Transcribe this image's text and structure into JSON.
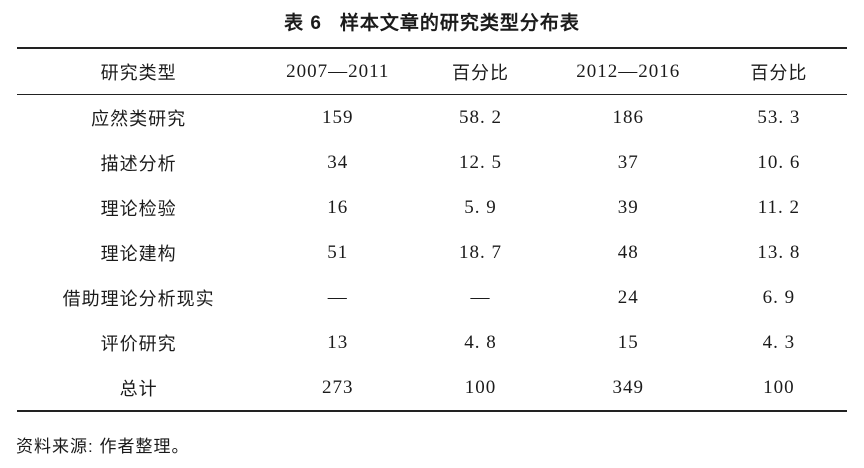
{
  "table": {
    "caption": {
      "label": "表 6",
      "text": "样本文章的研究类型分布表"
    },
    "columns": [
      {
        "label": "研究类型",
        "style": "cn"
      },
      {
        "label": "2007—2011",
        "style": "num"
      },
      {
        "label": "百分比",
        "style": "cn"
      },
      {
        "label": "2012—2016",
        "style": "num"
      },
      {
        "label": "百分比",
        "style": "cn"
      }
    ],
    "rows": [
      {
        "label": "应然类研究",
        "values": [
          "159",
          "58. 2",
          "186",
          "53. 3"
        ]
      },
      {
        "label": "描述分析",
        "values": [
          "34",
          "12. 5",
          "37",
          "10. 6"
        ]
      },
      {
        "label": "理论检验",
        "values": [
          "16",
          "5. 9",
          "39",
          "11. 2"
        ]
      },
      {
        "label": "理论建构",
        "values": [
          "51",
          "18. 7",
          "48",
          "13. 8"
        ]
      },
      {
        "label": "借助理论分析现实",
        "values": [
          "—",
          "—",
          "24",
          "6. 9"
        ]
      },
      {
        "label": "评价研究",
        "values": [
          "13",
          "4. 8",
          "15",
          "4. 3"
        ]
      },
      {
        "label": "总计",
        "values": [
          "273",
          "100",
          "349",
          "100"
        ]
      }
    ],
    "source_note": "资料来源: 作者整理。"
  },
  "layout": {
    "column_widths_percent": [
      29.3,
      18.7,
      15.7,
      19.9,
      16.4
    ],
    "line_color": "#222222",
    "text_color": "#1b1b1b",
    "background": "#ffffff"
  }
}
